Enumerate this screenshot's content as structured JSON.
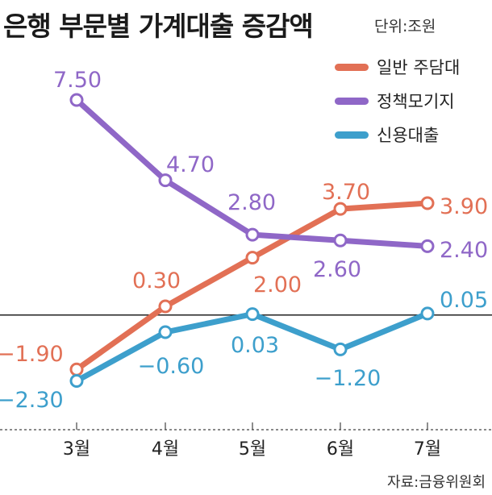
{
  "title": "은행 부문별 가계대출 증감액",
  "unit": "단위:조원",
  "source": "자료:금융위원회",
  "colors": {
    "mortgage": "#e27055",
    "policy": "#8f67c7",
    "credit": "#3d9fcc"
  },
  "chart_data": {
    "type": "line",
    "title": "은행 부문별 가계대출 증감액",
    "categories": [
      "3월",
      "4월",
      "5월",
      "6월",
      "7월"
    ],
    "ylim": [
      -3,
      8.5
    ],
    "grid": false,
    "legend": "top-right",
    "series": [
      {
        "name": "일반 주담대",
        "color": "#e27055",
        "values": [
          -1.9,
          0.3,
          2.0,
          3.7,
          3.9
        ],
        "labels": [
          "−1.90",
          "0.30",
          "2.00",
          "3.70",
          "3.90"
        ]
      },
      {
        "name": "정책모기지",
        "color": "#8f67c7",
        "values": [
          7.5,
          4.7,
          2.8,
          2.6,
          2.4
        ],
        "labels": [
          "7.50",
          "4.70",
          "2.80",
          "2.60",
          "2.40"
        ]
      },
      {
        "name": "신용대출",
        "color": "#3d9fcc",
        "values": [
          -2.3,
          -0.6,
          0.03,
          -1.2,
          0.05
        ],
        "labels": [
          "−2.30",
          "−0.60",
          "0.03",
          "−1.20",
          "0.05"
        ]
      }
    ]
  }
}
